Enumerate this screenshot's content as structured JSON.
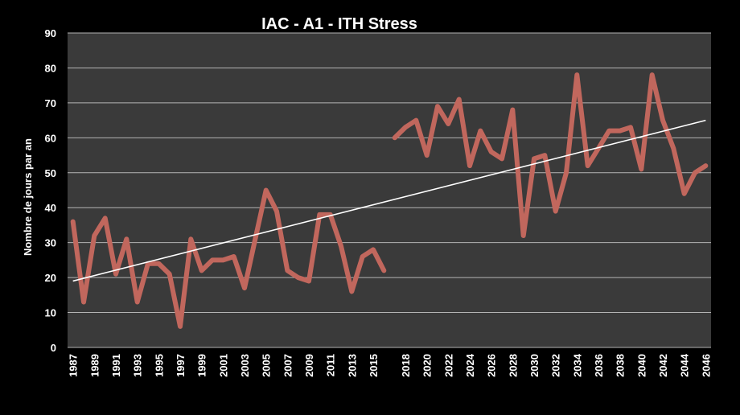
{
  "chart_data": {
    "type": "line",
    "title": "IAC - A1 - ITH Stress",
    "xlabel": "",
    "ylabel": "Nombre de jours par an",
    "ylim": [
      0,
      90
    ],
    "yticks": [
      "0",
      "10",
      "20",
      "30",
      "40",
      "50",
      "60",
      "70",
      "80",
      "90"
    ],
    "xticks": [
      "1987",
      "1989",
      "1991",
      "1993",
      "1995",
      "1997",
      "1999",
      "2001",
      "2003",
      "2005",
      "2007",
      "2009",
      "2011",
      "2013",
      "2015",
      "2018",
      "2020",
      "2022",
      "2024",
      "2026",
      "2028",
      "2030",
      "2032",
      "2034",
      "2036",
      "2038",
      "2040",
      "2042",
      "2044",
      "2046"
    ],
    "grid": true,
    "series": [
      {
        "color": "#c1675d",
        "x": [
          1987,
          1988,
          1989,
          1990,
          1991,
          1992,
          1993,
          1994,
          1995,
          1996,
          1997,
          1998,
          1999,
          2000,
          2001,
          2002,
          2003,
          2004,
          2005,
          2006,
          2007,
          2008,
          2009,
          2010,
          2011,
          2012,
          2013,
          2014,
          2015,
          2016
        ],
        "values": [
          36,
          13,
          32,
          37,
          21,
          31,
          13,
          24,
          24,
          21,
          6,
          31,
          22,
          25,
          25,
          26,
          17,
          31,
          45,
          39,
          22,
          20,
          19,
          38,
          38,
          29,
          16,
          26,
          28,
          22
        ]
      },
      {
        "color": "#c1675d",
        "x": [
          2017,
          2018,
          2019,
          2020,
          2021,
          2022,
          2023,
          2024,
          2025,
          2026,
          2027,
          2028,
          2029,
          2030,
          2031,
          2032,
          2033,
          2034,
          2035,
          2036,
          2037,
          2038,
          2039,
          2040,
          2041,
          2042,
          2043,
          2044,
          2045,
          2046
        ],
        "values": [
          60,
          63,
          65,
          55,
          69,
          64,
          71,
          52,
          62,
          56,
          54,
          68,
          32,
          54,
          55,
          39,
          50,
          78,
          52,
          57,
          62,
          62,
          63,
          51,
          78,
          65,
          57,
          44,
          50,
          52
        ]
      }
    ],
    "trendline": {
      "color": "#ffffff",
      "x": [
        1987,
        2046
      ],
      "values": [
        19,
        65
      ]
    },
    "colors": {
      "background": "#000000",
      "plot_area": "#3a3a3a",
      "grid": "#b4b4b4",
      "text": "#ffffff"
    }
  }
}
